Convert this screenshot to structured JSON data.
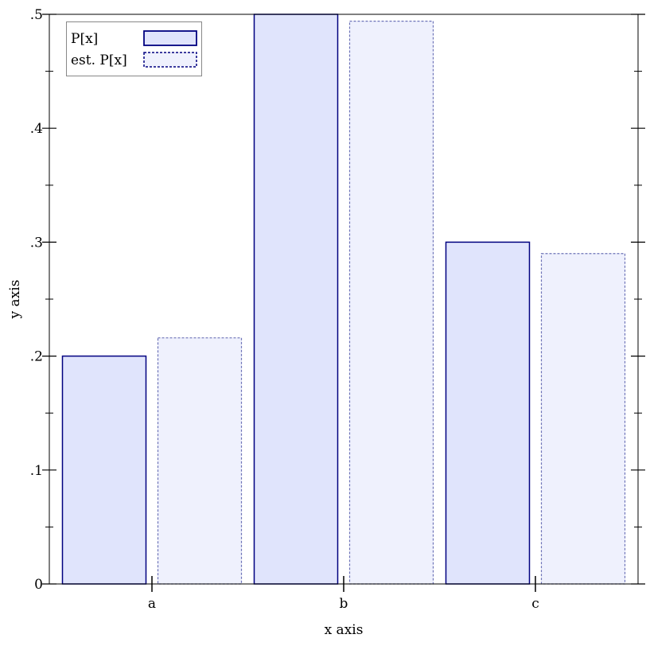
{
  "chart_data": {
    "type": "bar",
    "title": "",
    "xlabel": "x axis",
    "ylabel": "y axis",
    "categories": [
      "a",
      "b",
      "c"
    ],
    "ylim": [
      0,
      0.5
    ],
    "yticks": [
      0,
      0.1,
      0.2,
      0.3,
      0.4,
      0.5
    ],
    "ytick_labels": [
      "0",
      ".1",
      ".2",
      ".3",
      ".4",
      ".5"
    ],
    "grid": false,
    "legend_position": "top-left",
    "series": [
      {
        "name": "P[x]",
        "values": [
          0.2,
          0.5,
          0.3
        ],
        "fill": "#e0e4fc",
        "stroke": "#000080",
        "style": "solid"
      },
      {
        "name": "est. P[x]",
        "values": [
          0.216,
          0.494,
          0.29
        ],
        "fill": "#eff1fd",
        "stroke": "#6e74b8",
        "style": "dashed"
      }
    ]
  }
}
